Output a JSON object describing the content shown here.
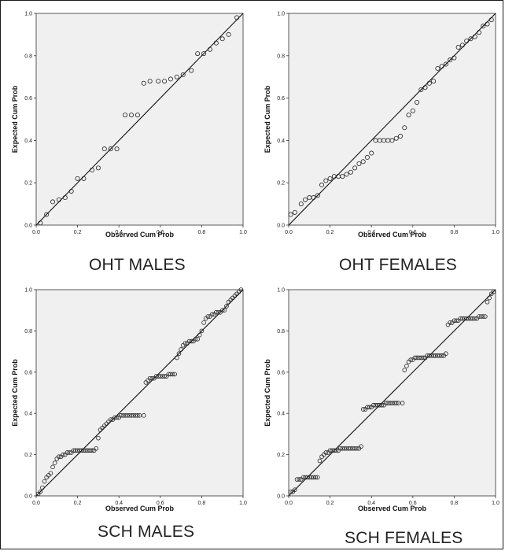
{
  "chart_data": [
    {
      "type": "scatter",
      "caption": "OHT MALES",
      "xlabel": "Observed Cum Prob",
      "ylabel": "Expected Cum Prob",
      "xlim": [
        0,
        1
      ],
      "ylim": [
        0,
        1
      ],
      "xticks": [
        "0.0",
        "0.2",
        "0.4",
        "0.6",
        "0.8",
        "1.0"
      ],
      "yticks": [
        "0.0",
        "0.2",
        "0.4",
        "0.6",
        "0.8",
        "1.0"
      ],
      "reference_line": [
        [
          0,
          0
        ],
        [
          1,
          1
        ]
      ],
      "points": [
        [
          0.02,
          0.01
        ],
        [
          0.05,
          0.05
        ],
        [
          0.08,
          0.11
        ],
        [
          0.11,
          0.12
        ],
        [
          0.14,
          0.13
        ],
        [
          0.17,
          0.16
        ],
        [
          0.2,
          0.22
        ],
        [
          0.23,
          0.22
        ],
        [
          0.27,
          0.26
        ],
        [
          0.3,
          0.27
        ],
        [
          0.33,
          0.36
        ],
        [
          0.36,
          0.36
        ],
        [
          0.39,
          0.36
        ],
        [
          0.43,
          0.52
        ],
        [
          0.46,
          0.52
        ],
        [
          0.49,
          0.52
        ],
        [
          0.52,
          0.67
        ],
        [
          0.55,
          0.68
        ],
        [
          0.59,
          0.68
        ],
        [
          0.62,
          0.68
        ],
        [
          0.65,
          0.69
        ],
        [
          0.68,
          0.7
        ],
        [
          0.71,
          0.71
        ],
        [
          0.75,
          0.73
        ],
        [
          0.78,
          0.81
        ],
        [
          0.81,
          0.81
        ],
        [
          0.84,
          0.83
        ],
        [
          0.87,
          0.86
        ],
        [
          0.9,
          0.88
        ],
        [
          0.93,
          0.9
        ],
        [
          0.97,
          0.98
        ]
      ]
    },
    {
      "type": "scatter",
      "caption": "OHT FEMALES",
      "xlabel": "Observed Cum Prob",
      "ylabel": "Expected Cum Prob",
      "xlim": [
        0,
        1
      ],
      "ylim": [
        0,
        1
      ],
      "xticks": [
        "0.0",
        "0.2",
        "0.4",
        "0.6",
        "0.8",
        "1.0"
      ],
      "yticks": [
        "0.0",
        "0.2",
        "0.4",
        "0.6",
        "0.8",
        "1.0"
      ],
      "reference_line": [
        [
          0,
          0
        ],
        [
          1,
          1
        ]
      ],
      "points": [
        [
          0.01,
          0.05
        ],
        [
          0.03,
          0.06
        ],
        [
          0.06,
          0.1
        ],
        [
          0.08,
          0.12
        ],
        [
          0.1,
          0.13
        ],
        [
          0.12,
          0.13
        ],
        [
          0.14,
          0.14
        ],
        [
          0.16,
          0.19
        ],
        [
          0.18,
          0.21
        ],
        [
          0.2,
          0.22
        ],
        [
          0.22,
          0.23
        ],
        [
          0.24,
          0.23
        ],
        [
          0.26,
          0.23
        ],
        [
          0.28,
          0.24
        ],
        [
          0.3,
          0.25
        ],
        [
          0.32,
          0.27
        ],
        [
          0.34,
          0.29
        ],
        [
          0.36,
          0.3
        ],
        [
          0.38,
          0.32
        ],
        [
          0.4,
          0.34
        ],
        [
          0.42,
          0.4
        ],
        [
          0.44,
          0.4
        ],
        [
          0.46,
          0.4
        ],
        [
          0.48,
          0.4
        ],
        [
          0.5,
          0.4
        ],
        [
          0.52,
          0.41
        ],
        [
          0.54,
          0.42
        ],
        [
          0.56,
          0.46
        ],
        [
          0.58,
          0.52
        ],
        [
          0.6,
          0.54
        ],
        [
          0.62,
          0.58
        ],
        [
          0.64,
          0.64
        ],
        [
          0.66,
          0.65
        ],
        [
          0.68,
          0.67
        ],
        [
          0.7,
          0.68
        ],
        [
          0.72,
          0.74
        ],
        [
          0.74,
          0.75
        ],
        [
          0.76,
          0.76
        ],
        [
          0.78,
          0.78
        ],
        [
          0.8,
          0.79
        ],
        [
          0.82,
          0.84
        ],
        [
          0.84,
          0.85
        ],
        [
          0.86,
          0.87
        ],
        [
          0.88,
          0.88
        ],
        [
          0.9,
          0.89
        ],
        [
          0.92,
          0.91
        ],
        [
          0.94,
          0.94
        ],
        [
          0.96,
          0.95
        ],
        [
          0.98,
          0.97
        ]
      ]
    },
    {
      "type": "scatter",
      "caption": "SCH MALES",
      "xlabel": "Observed Cum Prob",
      "ylabel": "Expected Cum Prob",
      "xlim": [
        0,
        1
      ],
      "ylim": [
        0,
        1
      ],
      "xticks": [
        "0.0",
        "0.2",
        "0.4",
        "0.6",
        "0.8",
        "1.0"
      ],
      "yticks": [
        "0.0",
        "0.2",
        "0.4",
        "0.6",
        "0.8",
        "1.0"
      ],
      "reference_line": [
        [
          0,
          0
        ],
        [
          1,
          1
        ]
      ],
      "points": [
        [
          0.01,
          0.01
        ],
        [
          0.02,
          0.02
        ],
        [
          0.03,
          0.04
        ],
        [
          0.04,
          0.07
        ],
        [
          0.05,
          0.09
        ],
        [
          0.06,
          0.1
        ],
        [
          0.07,
          0.11
        ],
        [
          0.08,
          0.14
        ],
        [
          0.09,
          0.16
        ],
        [
          0.1,
          0.18
        ],
        [
          0.11,
          0.19
        ],
        [
          0.12,
          0.19
        ],
        [
          0.13,
          0.2
        ],
        [
          0.14,
          0.2
        ],
        [
          0.15,
          0.21
        ],
        [
          0.16,
          0.21
        ],
        [
          0.17,
          0.21
        ],
        [
          0.18,
          0.22
        ],
        [
          0.19,
          0.22
        ],
        [
          0.2,
          0.22
        ],
        [
          0.21,
          0.22
        ],
        [
          0.22,
          0.22
        ],
        [
          0.23,
          0.22
        ],
        [
          0.24,
          0.22
        ],
        [
          0.25,
          0.22
        ],
        [
          0.26,
          0.22
        ],
        [
          0.27,
          0.22
        ],
        [
          0.28,
          0.22
        ],
        [
          0.29,
          0.23
        ],
        [
          0.3,
          0.28
        ],
        [
          0.31,
          0.32
        ],
        [
          0.32,
          0.33
        ],
        [
          0.33,
          0.34
        ],
        [
          0.34,
          0.35
        ],
        [
          0.35,
          0.36
        ],
        [
          0.36,
          0.37
        ],
        [
          0.37,
          0.37
        ],
        [
          0.38,
          0.38
        ],
        [
          0.39,
          0.38
        ],
        [
          0.4,
          0.38
        ],
        [
          0.41,
          0.39
        ],
        [
          0.42,
          0.39
        ],
        [
          0.43,
          0.39
        ],
        [
          0.44,
          0.39
        ],
        [
          0.45,
          0.39
        ],
        [
          0.46,
          0.39
        ],
        [
          0.47,
          0.39
        ],
        [
          0.48,
          0.39
        ],
        [
          0.49,
          0.39
        ],
        [
          0.5,
          0.39
        ],
        [
          0.52,
          0.39
        ],
        [
          0.53,
          0.55
        ],
        [
          0.54,
          0.56
        ],
        [
          0.55,
          0.57
        ],
        [
          0.56,
          0.57
        ],
        [
          0.57,
          0.57
        ],
        [
          0.58,
          0.58
        ],
        [
          0.59,
          0.58
        ],
        [
          0.6,
          0.58
        ],
        [
          0.61,
          0.58
        ],
        [
          0.62,
          0.58
        ],
        [
          0.63,
          0.58
        ],
        [
          0.64,
          0.59
        ],
        [
          0.65,
          0.59
        ],
        [
          0.66,
          0.59
        ],
        [
          0.67,
          0.59
        ],
        [
          0.68,
          0.67
        ],
        [
          0.69,
          0.69
        ],
        [
          0.7,
          0.71
        ],
        [
          0.71,
          0.73
        ],
        [
          0.72,
          0.74
        ],
        [
          0.73,
          0.74
        ],
        [
          0.74,
          0.75
        ],
        [
          0.75,
          0.75
        ],
        [
          0.76,
          0.75
        ],
        [
          0.77,
          0.76
        ],
        [
          0.78,
          0.76
        ],
        [
          0.79,
          0.78
        ],
        [
          0.8,
          0.8
        ],
        [
          0.81,
          0.84
        ],
        [
          0.82,
          0.86
        ],
        [
          0.83,
          0.87
        ],
        [
          0.84,
          0.87
        ],
        [
          0.85,
          0.88
        ],
        [
          0.86,
          0.88
        ],
        [
          0.87,
          0.89
        ],
        [
          0.88,
          0.89
        ],
        [
          0.89,
          0.89
        ],
        [
          0.9,
          0.9
        ],
        [
          0.91,
          0.9
        ],
        [
          0.92,
          0.92
        ],
        [
          0.93,
          0.94
        ],
        [
          0.94,
          0.95
        ],
        [
          0.95,
          0.96
        ],
        [
          0.96,
          0.97
        ],
        [
          0.97,
          0.98
        ],
        [
          0.98,
          0.99
        ],
        [
          0.99,
          1.0
        ]
      ]
    },
    {
      "type": "scatter",
      "caption": "SCH FEMALES",
      "xlabel": "Observed Cum Prob",
      "ylabel": "Expected Cum Prob",
      "xlim": [
        0,
        1
      ],
      "ylim": [
        0,
        1
      ],
      "xticks": [
        "0.0",
        "0.2",
        "0.4",
        "0.6",
        "0.8",
        "1.0"
      ],
      "yticks": [
        "0.0",
        "0.2",
        "0.4",
        "0.6",
        "0.8",
        "1.0"
      ],
      "reference_line": [
        [
          0,
          0
        ],
        [
          1,
          1
        ]
      ],
      "points": [
        [
          0.01,
          0.02
        ],
        [
          0.02,
          0.02
        ],
        [
          0.03,
          0.03
        ],
        [
          0.04,
          0.08
        ],
        [
          0.05,
          0.08
        ],
        [
          0.06,
          0.08
        ],
        [
          0.07,
          0.09
        ],
        [
          0.08,
          0.09
        ],
        [
          0.09,
          0.09
        ],
        [
          0.1,
          0.09
        ],
        [
          0.11,
          0.09
        ],
        [
          0.12,
          0.09
        ],
        [
          0.13,
          0.09
        ],
        [
          0.14,
          0.09
        ],
        [
          0.15,
          0.17
        ],
        [
          0.16,
          0.19
        ],
        [
          0.17,
          0.2
        ],
        [
          0.18,
          0.21
        ],
        [
          0.19,
          0.21
        ],
        [
          0.2,
          0.22
        ],
        [
          0.21,
          0.22
        ],
        [
          0.22,
          0.22
        ],
        [
          0.23,
          0.22
        ],
        [
          0.24,
          0.22
        ],
        [
          0.25,
          0.23
        ],
        [
          0.26,
          0.23
        ],
        [
          0.27,
          0.23
        ],
        [
          0.28,
          0.23
        ],
        [
          0.29,
          0.23
        ],
        [
          0.3,
          0.23
        ],
        [
          0.31,
          0.23
        ],
        [
          0.32,
          0.23
        ],
        [
          0.33,
          0.23
        ],
        [
          0.34,
          0.23
        ],
        [
          0.35,
          0.24
        ],
        [
          0.36,
          0.42
        ],
        [
          0.37,
          0.42
        ],
        [
          0.38,
          0.43
        ],
        [
          0.39,
          0.43
        ],
        [
          0.4,
          0.43
        ],
        [
          0.41,
          0.44
        ],
        [
          0.42,
          0.44
        ],
        [
          0.43,
          0.44
        ],
        [
          0.44,
          0.44
        ],
        [
          0.45,
          0.44
        ],
        [
          0.46,
          0.44
        ],
        [
          0.47,
          0.45
        ],
        [
          0.48,
          0.45
        ],
        [
          0.49,
          0.45
        ],
        [
          0.5,
          0.45
        ],
        [
          0.51,
          0.45
        ],
        [
          0.52,
          0.45
        ],
        [
          0.53,
          0.45
        ],
        [
          0.55,
          0.45
        ],
        [
          0.56,
          0.61
        ],
        [
          0.57,
          0.63
        ],
        [
          0.58,
          0.65
        ],
        [
          0.59,
          0.66
        ],
        [
          0.6,
          0.66
        ],
        [
          0.61,
          0.67
        ],
        [
          0.62,
          0.67
        ],
        [
          0.63,
          0.67
        ],
        [
          0.64,
          0.67
        ],
        [
          0.65,
          0.67
        ],
        [
          0.66,
          0.67
        ],
        [
          0.67,
          0.68
        ],
        [
          0.68,
          0.68
        ],
        [
          0.69,
          0.68
        ],
        [
          0.7,
          0.68
        ],
        [
          0.71,
          0.68
        ],
        [
          0.72,
          0.68
        ],
        [
          0.73,
          0.68
        ],
        [
          0.74,
          0.68
        ],
        [
          0.75,
          0.68
        ],
        [
          0.76,
          0.69
        ],
        [
          0.77,
          0.83
        ],
        [
          0.78,
          0.84
        ],
        [
          0.79,
          0.84
        ],
        [
          0.8,
          0.85
        ],
        [
          0.81,
          0.85
        ],
        [
          0.82,
          0.85
        ],
        [
          0.83,
          0.86
        ],
        [
          0.84,
          0.86
        ],
        [
          0.85,
          0.86
        ],
        [
          0.86,
          0.86
        ],
        [
          0.87,
          0.86
        ],
        [
          0.88,
          0.86
        ],
        [
          0.89,
          0.86
        ],
        [
          0.9,
          0.86
        ],
        [
          0.91,
          0.86
        ],
        [
          0.92,
          0.87
        ],
        [
          0.93,
          0.87
        ],
        [
          0.94,
          0.87
        ],
        [
          0.95,
          0.87
        ],
        [
          0.96,
          0.94
        ],
        [
          0.97,
          0.96
        ],
        [
          0.98,
          0.98
        ],
        [
          0.99,
          0.99
        ]
      ]
    }
  ],
  "colors": {
    "plot_background": "#f0f0f0",
    "marker_stroke": "#222222",
    "reference_line": "#111111"
  }
}
